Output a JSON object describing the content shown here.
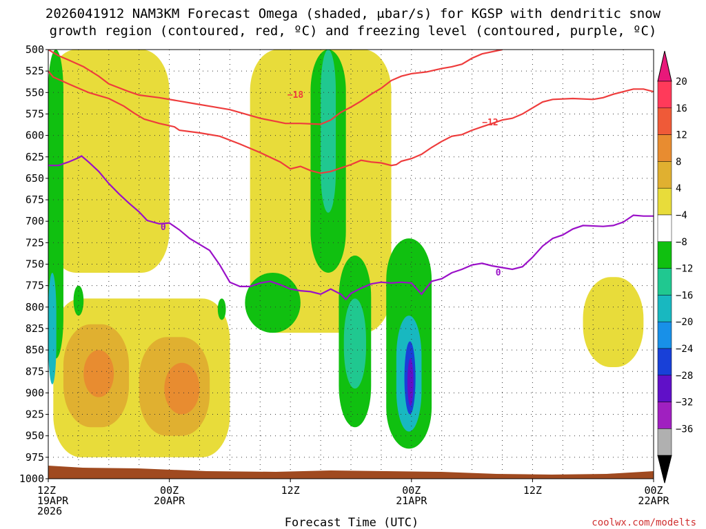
{
  "chart_data": {
    "type": "time-height cross section",
    "title_lines": [
      "2026041912 NAM3KM Forecast Omega (shaded, μbar/s) for KGSP with dendritic snow",
      "growth region (contoured, red, ºC) and freezing level (contoured, purple, ºC)"
    ],
    "xlabel": "Forecast Time (UTC)",
    "ylabel": "",
    "credit": "coolwx.com/modelts",
    "x_range_hours": [
      0,
      60
    ],
    "y_range_hpa": [
      500,
      1000
    ],
    "y_ticks": [
      500,
      525,
      550,
      575,
      600,
      625,
      650,
      675,
      700,
      725,
      750,
      775,
      800,
      825,
      850,
      875,
      900,
      925,
      950,
      975,
      1000
    ],
    "x_ticks": [
      {
        "hour": 0,
        "lines": [
          "12Z",
          "19APR",
          "2026"
        ]
      },
      {
        "hour": 12,
        "lines": [
          "00Z",
          "20APR"
        ]
      },
      {
        "hour": 24,
        "lines": [
          "12Z"
        ]
      },
      {
        "hour": 36,
        "lines": [
          "00Z",
          "21APR"
        ]
      },
      {
        "hour": 48,
        "lines": [
          "12Z"
        ]
      },
      {
        "hour": 60,
        "lines": [
          "00Z",
          "22APR"
        ]
      }
    ],
    "colorbar": {
      "label_values": [
        "20",
        "16",
        "12",
        "8",
        "4",
        "−4",
        "−8",
        "−12",
        "−16",
        "−20",
        "−24",
        "−28",
        "−32",
        "−36"
      ],
      "colors_top_down": [
        "#ff3a5a",
        "#ef5a38",
        "#e88c30",
        "#e0b030",
        "#e8dc3a",
        "#ffffff",
        "#10c010",
        "#20c890",
        "#18b8c0",
        "#1890e8",
        "#1840d8",
        "#6010c8",
        "#a020c0",
        "#b0b0b0"
      ],
      "top_arrow_color": "#e8187a",
      "bottom_arrow_color": "#000000"
    },
    "series": [
      {
        "name": "-18",
        "color": "#ee3c3c",
        "kind": "dendritic growth region isotherm",
        "points": [
          [
            0,
            500
          ],
          [
            1,
            507
          ],
          [
            2,
            512
          ],
          [
            3.5,
            520
          ],
          [
            5,
            531
          ],
          [
            6,
            540
          ],
          [
            8,
            549
          ],
          [
            9,
            553
          ],
          [
            11,
            556
          ],
          [
            12.5,
            559
          ],
          [
            14.5,
            563
          ],
          [
            16,
            566
          ],
          [
            18,
            570
          ],
          [
            19.5,
            575
          ],
          [
            21,
            580
          ],
          [
            22.7,
            584
          ],
          [
            23.5,
            586
          ],
          [
            25,
            586
          ],
          [
            27,
            587
          ],
          [
            28,
            582
          ],
          [
            29,
            573
          ],
          [
            30,
            567
          ],
          [
            31,
            560
          ],
          [
            32,
            552
          ],
          [
            33,
            545
          ],
          [
            34,
            536
          ],
          [
            35,
            531
          ],
          [
            36,
            528
          ],
          [
            37.5,
            526
          ],
          [
            39,
            522
          ],
          [
            40,
            520
          ],
          [
            41,
            517
          ],
          [
            42,
            510
          ],
          [
            43,
            505
          ],
          [
            45,
            500
          ]
        ],
        "label_at": [
          24.5,
          553
        ]
      },
      {
        "name": "-12",
        "color": "#ee3c3c",
        "kind": "dendritic growth region isotherm",
        "points": [
          [
            0,
            525
          ],
          [
            0.5,
            532
          ],
          [
            2,
            540
          ],
          [
            4,
            550
          ],
          [
            6,
            557
          ],
          [
            7.5,
            566
          ],
          [
            8.5,
            574
          ],
          [
            9.5,
            581
          ],
          [
            11,
            586
          ],
          [
            12.5,
            590
          ],
          [
            13,
            594
          ],
          [
            15,
            597
          ],
          [
            17,
            601
          ],
          [
            19,
            610
          ],
          [
            21,
            620
          ],
          [
            23,
            631
          ],
          [
            24,
            639
          ],
          [
            25,
            636
          ],
          [
            26,
            641
          ],
          [
            27,
            644
          ],
          [
            28,
            642
          ],
          [
            29,
            638
          ],
          [
            30,
            634
          ],
          [
            31,
            629
          ],
          [
            32,
            631
          ],
          [
            33,
            632
          ],
          [
            34,
            635
          ],
          [
            34.5,
            634
          ],
          [
            35,
            630
          ],
          [
            36,
            627
          ],
          [
            37,
            622
          ],
          [
            38,
            614
          ],
          [
            39,
            607
          ],
          [
            40,
            601
          ],
          [
            41,
            599
          ],
          [
            42,
            594
          ],
          [
            43,
            590
          ],
          [
            44,
            586
          ],
          [
            45,
            582
          ],
          [
            46,
            580
          ],
          [
            47,
            575
          ],
          [
            48,
            568
          ],
          [
            49,
            561
          ],
          [
            50,
            558
          ],
          [
            52,
            557
          ],
          [
            54,
            558
          ],
          [
            55,
            556
          ],
          [
            56,
            552
          ],
          [
            57,
            549
          ],
          [
            58,
            546
          ],
          [
            59,
            546
          ],
          [
            60,
            549
          ]
        ],
        "label_at": [
          43.8,
          585
        ]
      },
      {
        "name": "0",
        "color": "#9a10c8",
        "kind": "freezing level",
        "points": [
          [
            0,
            635
          ],
          [
            1,
            635
          ],
          [
            2,
            631
          ],
          [
            3,
            626
          ],
          [
            3.3,
            624
          ],
          [
            4,
            631
          ],
          [
            5,
            642
          ],
          [
            6,
            656
          ],
          [
            7,
            668
          ],
          [
            8,
            679
          ],
          [
            9,
            689
          ],
          [
            9.8,
            699
          ],
          [
            11,
            703
          ],
          [
            12,
            702
          ],
          [
            13,
            710
          ],
          [
            14,
            720
          ],
          [
            15,
            727
          ],
          [
            16,
            734
          ],
          [
            17,
            751
          ],
          [
            18,
            771
          ],
          [
            19,
            776
          ],
          [
            20,
            776
          ],
          [
            21,
            772
          ],
          [
            22,
            770
          ],
          [
            23,
            774
          ],
          [
            24,
            779
          ],
          [
            25,
            781
          ],
          [
            26,
            782
          ],
          [
            27,
            785
          ],
          [
            28,
            779
          ],
          [
            29,
            785
          ],
          [
            29.5,
            791
          ],
          [
            30,
            784
          ],
          [
            31,
            778
          ],
          [
            32,
            773
          ],
          [
            33,
            771
          ],
          [
            34,
            772
          ],
          [
            35,
            771
          ],
          [
            36,
            772
          ],
          [
            37,
            785
          ],
          [
            38,
            770
          ],
          [
            39,
            767
          ],
          [
            40,
            760
          ],
          [
            41,
            756
          ],
          [
            42,
            751
          ],
          [
            43,
            749
          ],
          [
            44,
            752
          ],
          [
            45,
            754
          ],
          [
            46,
            756
          ],
          [
            47,
            753
          ],
          [
            48,
            742
          ],
          [
            49,
            729
          ],
          [
            50,
            720
          ],
          [
            51,
            716
          ],
          [
            52,
            709
          ],
          [
            53,
            705
          ],
          [
            55,
            706
          ],
          [
            56,
            705
          ],
          [
            57,
            701
          ],
          [
            58,
            693
          ],
          [
            59,
            694
          ],
          [
            60,
            694
          ]
        ],
        "label_at": [
          11.4,
          707
        ],
        "label_at_2": [
          44.6,
          760
        ]
      }
    ],
    "omega_regions": [
      {
        "band": "4",
        "hour": [
          0,
          12
        ],
        "hpa": [
          500,
          760
        ]
      },
      {
        "band": "4",
        "hour": [
          0.5,
          18
        ],
        "hpa": [
          790,
          975
        ]
      },
      {
        "band": "8",
        "hour": [
          1.5,
          8
        ],
        "hpa": [
          820,
          940
        ]
      },
      {
        "band": "12",
        "hour": [
          3.5,
          6.5
        ],
        "hpa": [
          850,
          905
        ]
      },
      {
        "band": "8",
        "hour": [
          9,
          16
        ],
        "hpa": [
          835,
          950
        ]
      },
      {
        "band": "12",
        "hour": [
          11.5,
          15
        ],
        "hpa": [
          865,
          925
        ]
      },
      {
        "band": "4",
        "hour": [
          20,
          34
        ],
        "hpa": [
          500,
          830
        ]
      },
      {
        "band": "-8",
        "hour": [
          19.5,
          25
        ],
        "hpa": [
          760,
          830
        ]
      },
      {
        "band": "-8",
        "hour": [
          26,
          29.5
        ],
        "hpa": [
          500,
          760
        ]
      },
      {
        "band": "-12",
        "hour": [
          27,
          28.5
        ],
        "hpa": [
          500,
          690
        ]
      },
      {
        "band": "-8",
        "hour": [
          28.8,
          32
        ],
        "hpa": [
          740,
          940
        ]
      },
      {
        "band": "-12",
        "hour": [
          29.3,
          31.5
        ],
        "hpa": [
          790,
          895
        ]
      },
      {
        "band": "-8",
        "hour": [
          33.5,
          38
        ],
        "hpa": [
          720,
          965
        ]
      },
      {
        "band": "-16",
        "hour": [
          34.5,
          37
        ],
        "hpa": [
          810,
          945
        ]
      },
      {
        "band": "-24",
        "hour": [
          35.3,
          36.4
        ],
        "hpa": [
          840,
          925
        ]
      },
      {
        "band": "-28",
        "hour": [
          35.6,
          36.2
        ],
        "hpa": [
          860,
          915
        ]
      },
      {
        "band": "4",
        "hour": [
          53,
          59
        ],
        "hpa": [
          765,
          870
        ]
      },
      {
        "band": "-8",
        "hour": [
          0,
          1.5
        ],
        "hpa": [
          500,
          860
        ]
      },
      {
        "band": "-16",
        "hour": [
          0,
          0.8
        ],
        "hpa": [
          760,
          890
        ]
      },
      {
        "band": "-8",
        "hour": [
          2.5,
          3.5
        ],
        "hpa": [
          775,
          810
        ]
      },
      {
        "band": "-8",
        "hour": [
          16.8,
          17.6
        ],
        "hpa": [
          790,
          815
        ]
      }
    ],
    "terrain_surface_hpa": 988
  }
}
